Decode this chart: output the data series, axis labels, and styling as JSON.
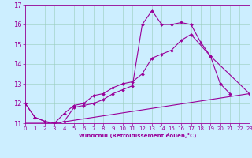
{
  "title": "",
  "xlabel": "Windchill (Refroidissement éolien,°C)",
  "background_color": "#cceeff",
  "line_color": "#990099",
  "grid_color": "#99ccbb",
  "x_min": 0,
  "x_max": 23,
  "y_min": 11,
  "y_max": 17,
  "line1_x": [
    0,
    1,
    2,
    3,
    4,
    5,
    6,
    7,
    8,
    9,
    10,
    11,
    12,
    13,
    14,
    15,
    16,
    17,
    18,
    19,
    20,
    21
  ],
  "line1_y": [
    12.0,
    11.3,
    11.1,
    10.9,
    11.1,
    11.8,
    11.9,
    12.0,
    12.2,
    12.5,
    12.7,
    12.9,
    16.0,
    16.7,
    16.0,
    16.0,
    16.1,
    16.0,
    15.1,
    14.4,
    13.0,
    12.5
  ],
  "line2_x": [
    0,
    1,
    2,
    3,
    4,
    5,
    6,
    7,
    8,
    9,
    10,
    11,
    12,
    13,
    14,
    15,
    16,
    17,
    19,
    23
  ],
  "line2_y": [
    12.0,
    11.3,
    11.1,
    11.0,
    11.5,
    11.9,
    12.0,
    12.4,
    12.5,
    12.8,
    13.0,
    13.1,
    13.5,
    14.3,
    14.5,
    14.7,
    15.2,
    15.5,
    14.4,
    12.5
  ],
  "line3_x": [
    0,
    3,
    23
  ],
  "line3_y": [
    11.0,
    11.0,
    12.5
  ],
  "yticks": [
    11,
    12,
    13,
    14,
    15,
    16,
    17
  ],
  "xticks": [
    0,
    1,
    2,
    3,
    4,
    5,
    6,
    7,
    8,
    9,
    10,
    11,
    12,
    13,
    14,
    15,
    16,
    17,
    18,
    19,
    20,
    21,
    22,
    23
  ],
  "tick_fontsize": 5,
  "xlabel_fontsize": 5,
  "marker_size": 2.0,
  "linewidth": 0.8
}
